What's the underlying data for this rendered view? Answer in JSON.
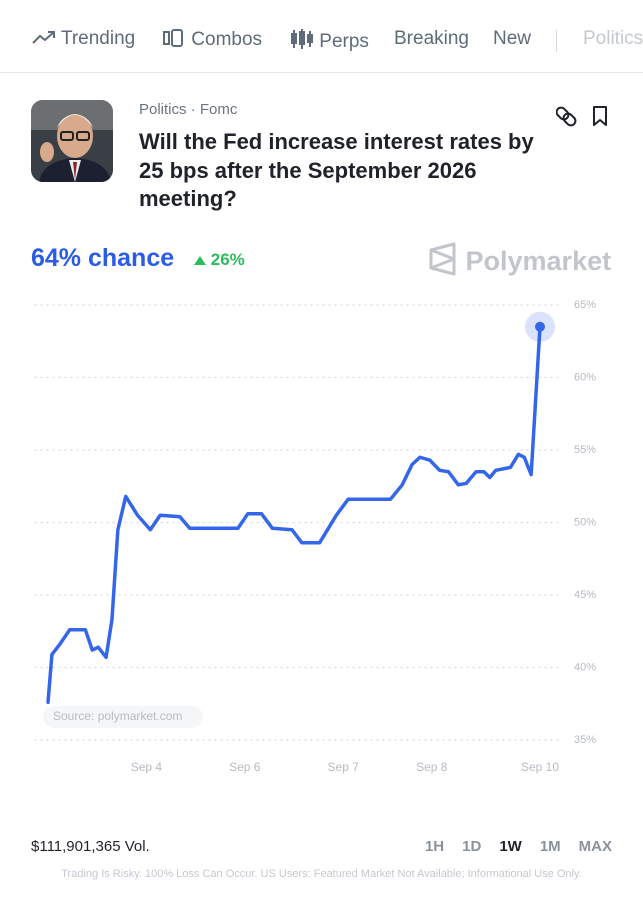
{
  "nav": [
    "Trending",
    "Combos",
    "Perps",
    "Breaking",
    "New",
    "Politics"
  ],
  "market": {
    "tags": "Politics · Fomc",
    "question": "Will the Fed increase interest rates by 25 bps after the September 2026 meeting?"
  },
  "chance": "64% chance",
  "change": "26%",
  "brand": "Polymarket",
  "chart_data": {
    "type": "line",
    "color": "#3366e8",
    "grid": true,
    "x": [
      0,
      0.4,
      1.2,
      2.2,
      3.8,
      4.5,
      5.1,
      5.9,
      6.5,
      7.1,
      7.9,
      9.1,
      10.4,
      11.4,
      13.4,
      14.4,
      19.3,
      20.3,
      21.7,
      22.8,
      24.8,
      25.8,
      27.6,
      29.3,
      30.5,
      34.8,
      36,
      37,
      37.8,
      38.8,
      39.8,
      40.7,
      41.7,
      42.5,
      43.5,
      44.3,
      44.9,
      45.5,
      47,
      47.8,
      48.4,
      49.1,
      50
    ],
    "values": [
      37.6,
      40.9,
      41.6,
      42.6,
      42.6,
      41.2,
      41.4,
      40.7,
      43.3,
      49.5,
      51.8,
      50.5,
      49.5,
      50.5,
      50.4,
      49.6,
      49.6,
      50.6,
      50.6,
      49.6,
      49.5,
      48.6,
      48.6,
      50.5,
      51.6,
      51.6,
      52.6,
      54,
      54.5,
      54.3,
      53.6,
      53.5,
      52.6,
      52.7,
      53.5,
      53.5,
      53.1,
      53.6,
      53.8,
      54.7,
      54.5,
      53.3,
      63.5
    ],
    "xlim": [
      0,
      50
    ],
    "xticks": [
      {
        "value": 10,
        "label": "Sep 4"
      },
      {
        "value": 20,
        "label": "Sep 6"
      },
      {
        "value": 30,
        "label": "Sep 7"
      },
      {
        "value": 39,
        "label": "Sep 8"
      },
      {
        "value": 50,
        "label": "Sep 10"
      }
    ],
    "ylim": [
      35,
      65
    ],
    "yticks": [
      {
        "value": 35,
        "label": "35%"
      },
      {
        "value": 40,
        "label": "40%"
      },
      {
        "value": 45,
        "label": "45%"
      },
      {
        "value": 50,
        "label": "50%"
      },
      {
        "value": 55,
        "label": "55%"
      },
      {
        "value": 60,
        "label": "60%"
      },
      {
        "value": 65,
        "label": "65%"
      }
    ],
    "source": "Source: polymarket.com"
  },
  "volume": "$111,901,365 Vol.",
  "ranges": [
    "1H",
    "1D",
    "1W",
    "1M",
    "MAX"
  ],
  "selected_range": "1W",
  "disclaimer": "Trading Is Risky. 100% Loss Can Occur. US Users: Featured Market Not Available; Informational Use Only."
}
